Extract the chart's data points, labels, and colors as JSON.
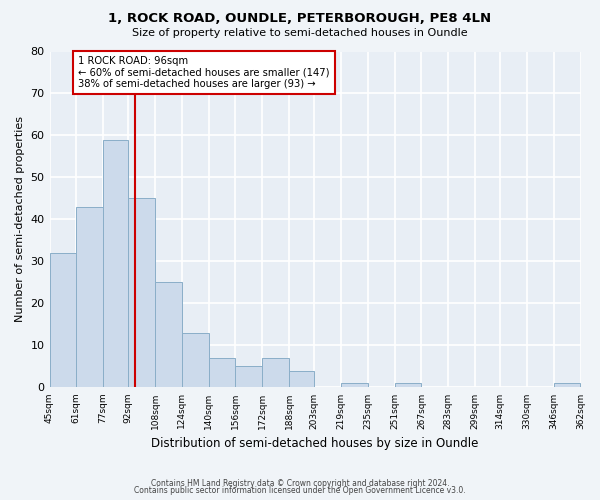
{
  "title": "1, ROCK ROAD, OUNDLE, PETERBOROUGH, PE8 4LN",
  "subtitle": "Size of property relative to semi-detached houses in Oundle",
  "xlabel": "Distribution of semi-detached houses by size in Oundle",
  "ylabel": "Number of semi-detached properties",
  "bar_color": "#ccdaeb",
  "bar_edge_color": "#8aaec8",
  "plot_bg_color": "#e8eef5",
  "fig_bg_color": "#f0f4f8",
  "grid_color": "#ffffff",
  "vline_x": 96,
  "vline_color": "#cc0000",
  "annotation_title": "1 ROCK ROAD: 96sqm",
  "annotation_line1": "← 60% of semi-detached houses are smaller (147)",
  "annotation_line2": "38% of semi-detached houses are larger (93) →",
  "annotation_box_color": "#ffffff",
  "annotation_box_edge": "#cc0000",
  "bins": [
    45,
    61,
    77,
    92,
    108,
    124,
    140,
    156,
    172,
    188,
    203,
    219,
    235,
    251,
    267,
    283,
    299,
    314,
    330,
    346,
    362
  ],
  "heights": [
    32,
    43,
    59,
    45,
    25,
    13,
    7,
    5,
    7,
    4,
    0,
    1,
    0,
    1,
    0,
    0,
    0,
    0,
    0,
    1
  ],
  "xlabels": [
    "45sqm",
    "61sqm",
    "77sqm",
    "92sqm",
    "108sqm",
    "124sqm",
    "140sqm",
    "156sqm",
    "172sqm",
    "188sqm",
    "203sqm",
    "219sqm",
    "235sqm",
    "251sqm",
    "267sqm",
    "283sqm",
    "299sqm",
    "314sqm",
    "330sqm",
    "346sqm",
    "362sqm"
  ],
  "ylim": [
    0,
    80
  ],
  "yticks": [
    0,
    10,
    20,
    30,
    40,
    50,
    60,
    70,
    80
  ],
  "footer1": "Contains HM Land Registry data © Crown copyright and database right 2024.",
  "footer2": "Contains public sector information licensed under the Open Government Licence v3.0."
}
